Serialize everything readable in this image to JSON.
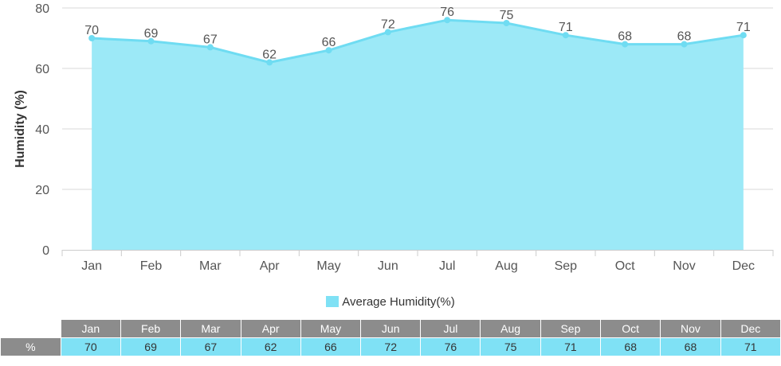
{
  "chart_data": {
    "type": "area",
    "categories": [
      "Jan",
      "Feb",
      "Mar",
      "Apr",
      "May",
      "Jun",
      "Jul",
      "Aug",
      "Sep",
      "Oct",
      "Nov",
      "Dec"
    ],
    "series": [
      {
        "name": "Average Humidity(%)",
        "values": [
          70,
          69,
          67,
          62,
          66,
          72,
          76,
          75,
          71,
          68,
          68,
          71
        ]
      }
    ],
    "ylabel": "Humidity (%)",
    "xlabel": "",
    "ylim": [
      0,
      80
    ],
    "yticks": [
      0,
      20,
      40,
      60,
      80
    ],
    "grid": true,
    "legend": "bottom-center",
    "data_labels": true,
    "colors": {
      "fill": "#9ce9f7",
      "line": "#6fdcf2",
      "point": "#6fdcf2"
    }
  },
  "table": {
    "row_label": "%"
  }
}
